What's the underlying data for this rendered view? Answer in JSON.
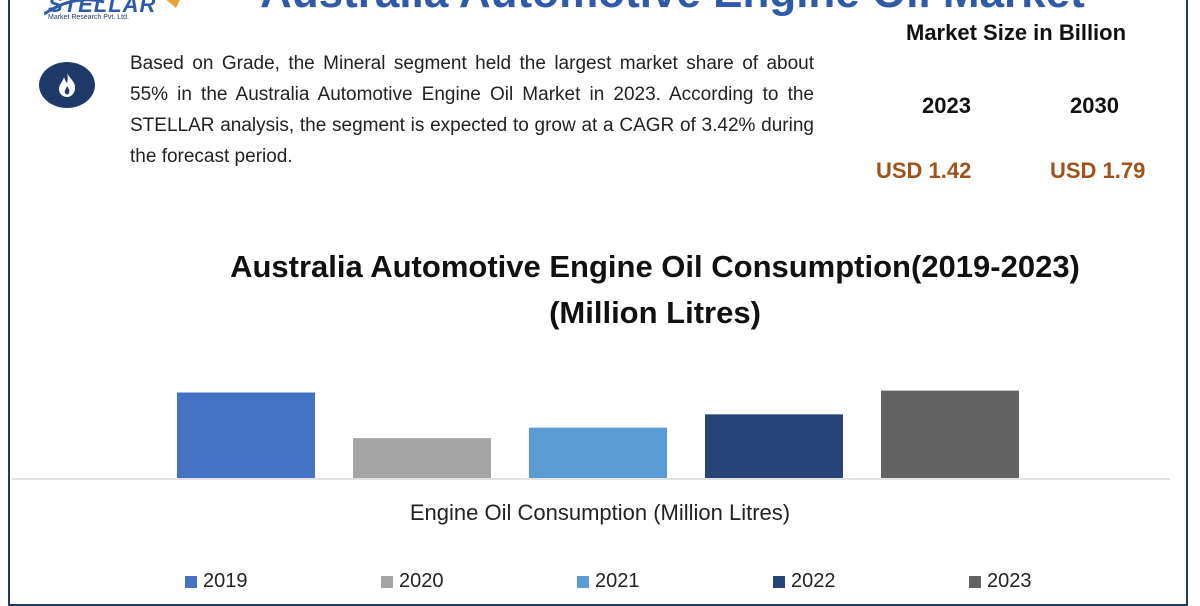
{
  "header": {
    "title": "Australia Automotive Engine Oil Market",
    "logo_text": "STELLAR",
    "logo_sub": "Market Research Pvt. Ltd."
  },
  "summary": {
    "text": "Based on Grade, the Mineral segment held the largest market share of about 55% in the Australia Automotive Engine Oil Market in 2023. According to the STELLAR analysis, the segment is expected to grow at a CAGR of 3.42% during the forecast period.",
    "icon": "flame-icon"
  },
  "market_size": {
    "title": "Market Size in Billion",
    "year_a": "2023",
    "year_b": "2030",
    "value_a": "USD 1.42",
    "value_b": "USD 1.79",
    "value_color": "#a0521a"
  },
  "chart_data": {
    "type": "bar",
    "title": "Australia Automotive Engine Oil Consumption(2019-2023)(Million Litres)",
    "xlabel": "Engine Oil Consumption (Million Litres)",
    "ylabel": "",
    "categories": [
      "2019",
      "2020",
      "2021",
      "2022",
      "2023"
    ],
    "values": [
      0.9,
      0.42,
      0.53,
      0.67,
      0.92
    ],
    "colors": [
      "#4472c4",
      "#a5a5a5",
      "#5b9bd5",
      "#264478",
      "#636363"
    ],
    "legend": {
      "position": "bottom",
      "entries": [
        "2019",
        "2020",
        "2021",
        "2022",
        "2023"
      ]
    },
    "grid": false
  }
}
